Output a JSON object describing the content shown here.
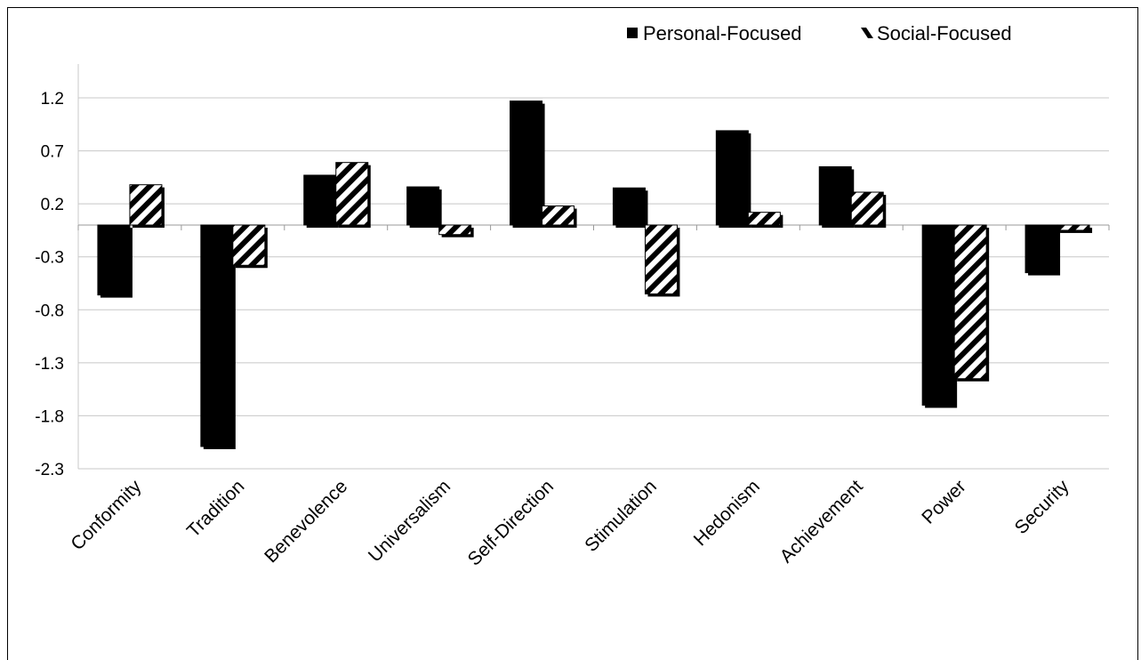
{
  "chart_data": {
    "type": "bar",
    "title": "",
    "xlabel": "",
    "ylabel": "",
    "categories": [
      "Conformity",
      "Tradition",
      "Benevolence",
      "Universalism",
      "Self-Direction",
      "Stimulation",
      "Hedonism",
      "Achievement",
      "Power",
      "Security"
    ],
    "series": [
      {
        "name": "Personal-Focused",
        "pattern": "solid",
        "color": "#000000",
        "values": [
          -0.66,
          -2.09,
          0.47,
          0.36,
          1.17,
          0.35,
          0.89,
          0.55,
          -1.7,
          -0.45
        ]
      },
      {
        "name": "Social-Focused",
        "pattern": "diagonal-hatch",
        "color": "#000000",
        "values": [
          0.38,
          -0.38,
          0.59,
          -0.09,
          0.18,
          -0.65,
          0.12,
          0.31,
          -1.45,
          -0.05
        ]
      }
    ],
    "yticks": [
      "1.2",
      "0.7",
      "0.2",
      "-0.3",
      "-0.8",
      "-1.3",
      "-1.8",
      "-2.3"
    ],
    "ylim": [
      -2.3,
      1.2
    ],
    "grid": true,
    "legend_position": "top-right",
    "gridline_color": "#c8c8c8"
  }
}
